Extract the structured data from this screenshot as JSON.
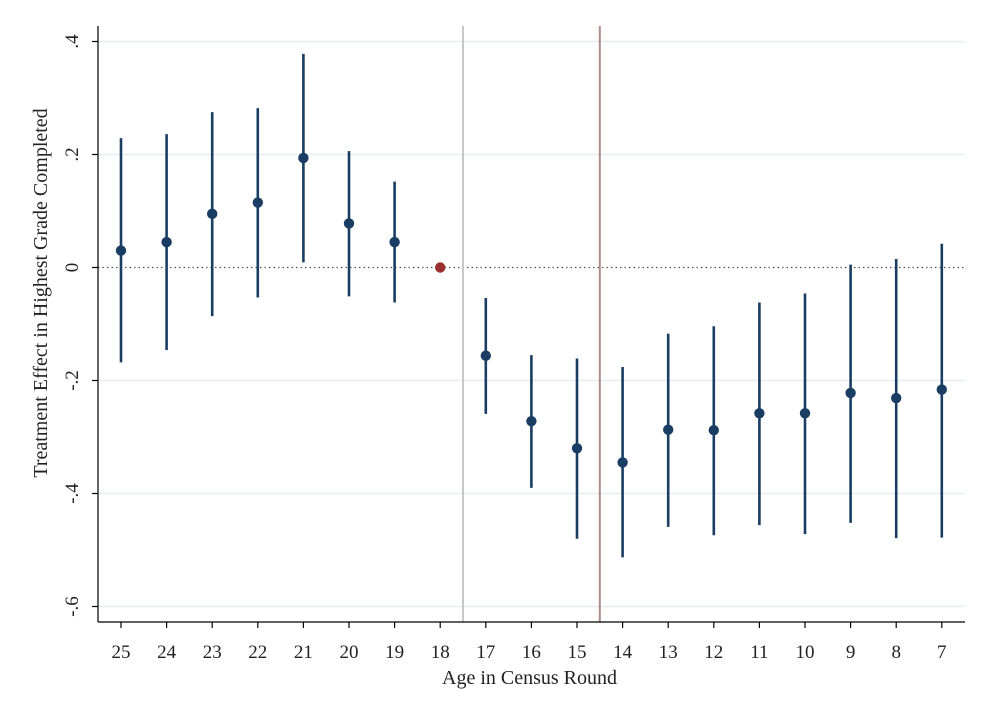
{
  "chart_data": {
    "type": "scatter",
    "title": "",
    "xlabel": "Age in Census Round",
    "ylabel": "Treatment Effect in Highest Grade Completed",
    "ylim": [
      -0.6,
      0.4
    ],
    "yticks": [
      {
        "value": -0.6,
        "label": "-.6"
      },
      {
        "value": -0.4,
        "label": "-.4"
      },
      {
        "value": -0.2,
        "label": "-.2"
      },
      {
        "value": 0,
        "label": "0"
      },
      {
        "value": 0.2,
        "label": ".2"
      },
      {
        "value": 0.4,
        "label": ".4"
      }
    ],
    "categories": [
      "25",
      "24",
      "23",
      "22",
      "21",
      "20",
      "19",
      "18",
      "17",
      "16",
      "15",
      "14",
      "13",
      "12",
      "11",
      "10",
      "9",
      "8",
      "7"
    ],
    "series": [
      {
        "estimates": [
          0.03,
          0.045,
          0.095,
          0.115,
          0.194,
          0.078,
          0.045,
          0.0,
          -0.156,
          -0.272,
          -0.32,
          -0.345,
          -0.287,
          -0.288,
          -0.258,
          -0.258,
          -0.222,
          -0.231,
          -0.216
        ],
        "ci_lower": [
          -0.168,
          -0.146,
          -0.086,
          -0.053,
          0.009,
          -0.051,
          -0.062,
          null,
          -0.259,
          -0.39,
          -0.48,
          -0.513,
          -0.459,
          -0.474,
          -0.456,
          -0.472,
          -0.452,
          -0.479,
          -0.478
        ],
        "ci_upper": [
          0.229,
          0.236,
          0.275,
          0.282,
          0.378,
          0.206,
          0.152,
          null,
          -0.054,
          -0.155,
          -0.161,
          -0.176,
          -0.117,
          -0.104,
          -0.062,
          -0.046,
          0.005,
          0.015,
          0.042
        ]
      }
    ],
    "reference_category": "18",
    "reference_lines": {
      "horizontal_zero": {
        "value": 0,
        "style": "dotted"
      },
      "vertical": [
        {
          "between": [
            "18",
            "17"
          ],
          "color": "#c8c8c8"
        },
        {
          "between": [
            "15",
            "14"
          ],
          "color": "#b08a88"
        }
      ]
    },
    "grid": true,
    "legend": "none"
  },
  "colors": {
    "point": "#1a3e63",
    "reference_point": "#9b2f2f",
    "gridline": "#e6eef0",
    "axis": "#000000"
  }
}
